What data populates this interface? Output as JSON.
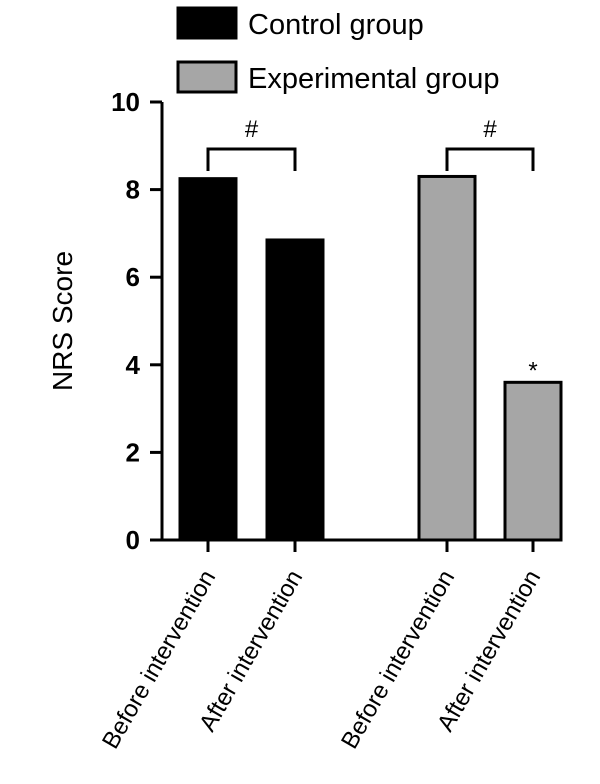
{
  "chart_data": {
    "type": "bar",
    "ylabel": "NRS Score",
    "xlabel": "",
    "ylim": [
      0,
      10
    ],
    "yticks": [
      0,
      2,
      4,
      6,
      8,
      10
    ],
    "legend_position": "top",
    "series": [
      {
        "name": "Control group",
        "color": "#000000",
        "categories": [
          "Before intervention",
          "After intervention"
        ],
        "values": [
          8.25,
          6.85
        ]
      },
      {
        "name": "Experimental group",
        "color": "#a6a6a6",
        "categories": [
          "Before intervention",
          "After intervention"
        ],
        "values": [
          8.3,
          3.6
        ]
      }
    ],
    "annotations": [
      {
        "text": "#",
        "type": "bracket",
        "series": 0
      },
      {
        "text": "#",
        "type": "bracket",
        "series": 1
      },
      {
        "text": "*",
        "type": "bar-mark",
        "series": 1,
        "category": 1
      }
    ]
  }
}
